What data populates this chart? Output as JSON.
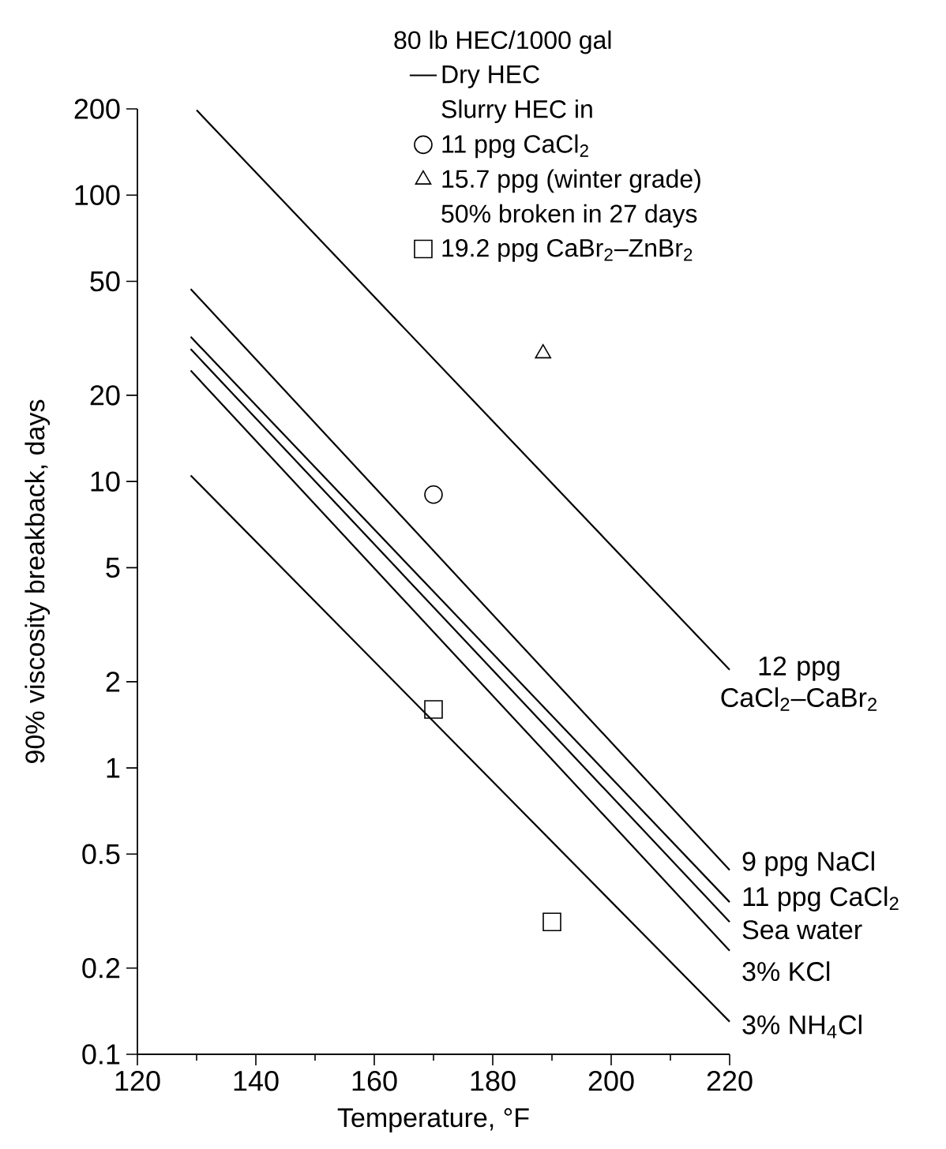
{
  "chart_data": {
    "type": "line",
    "xlabel": "Temperature, °F",
    "ylabel": "90% viscosity breakback, days",
    "legend_title": "80 lb HEC/1000 gal",
    "annotations": [
      "Dry HEC",
      "Slurry HEC in",
      "50% broken in 27 days"
    ],
    "xlim": [
      120,
      220
    ],
    "xticks": [
      120,
      140,
      160,
      180,
      200,
      220
    ],
    "ylim": [
      0.1,
      200
    ],
    "yticks": [
      0.1,
      0.2,
      0.5,
      1,
      2,
      5,
      10,
      20,
      50,
      100,
      200
    ],
    "log": true,
    "grid": false,
    "legend": "top",
    "series": [
      {
        "name": "12 ppg CaCl$_{2}$–CaBr$_{2}$",
        "color": "#000000",
        "marker": "none",
        "line_style": "solid",
        "x": [
          130,
          220
        ],
        "values": [
          198,
          2.2
        ]
      },
      {
        "name": "9 ppg NaCl",
        "color": "#000000",
        "marker": "none",
        "line_style": "solid",
        "x": [
          129,
          220
        ],
        "values": [
          47,
          0.44
        ]
      },
      {
        "name": "11 ppg CaCl$_{2}$",
        "color": "#000000",
        "marker": "none",
        "line_style": "solid",
        "x": [
          129,
          220
        ],
        "values": [
          32,
          0.34
        ]
      },
      {
        "name": "Sea water",
        "color": "#000000",
        "marker": "none",
        "line_style": "solid",
        "x": [
          129,
          220
        ],
        "values": [
          29,
          0.29
        ]
      },
      {
        "name": "3% KCl",
        "color": "#000000",
        "marker": "none",
        "line_style": "solid",
        "x": [
          129,
          220
        ],
        "values": [
          24.4,
          0.23
        ]
      },
      {
        "name": "3% NH$_{4}$Cl",
        "color": "#000000",
        "marker": "none",
        "line_style": "solid",
        "x": [
          129,
          220
        ],
        "values": [
          10.5,
          0.13
        ]
      },
      {
        "name": "11 ppg CaCl$_{2}$",
        "type": "scatter",
        "color": "#000000",
        "marker": "circle",
        "x": [
          170
        ],
        "values": [
          9
        ]
      },
      {
        "name": "15.7 ppg (winter grade)",
        "type": "scatter",
        "color": "#000000",
        "marker": "triangle",
        "x": [
          188.5
        ],
        "values": [
          28
        ]
      },
      {
        "name": "19.2 ppg CaBr$_{2}$–ZnBr$_{2}$",
        "type": "scatter",
        "color": "#000000",
        "marker": "square",
        "x": [
          170,
          190
        ],
        "values": [
          1.6,
          0.29
        ]
      }
    ]
  }
}
